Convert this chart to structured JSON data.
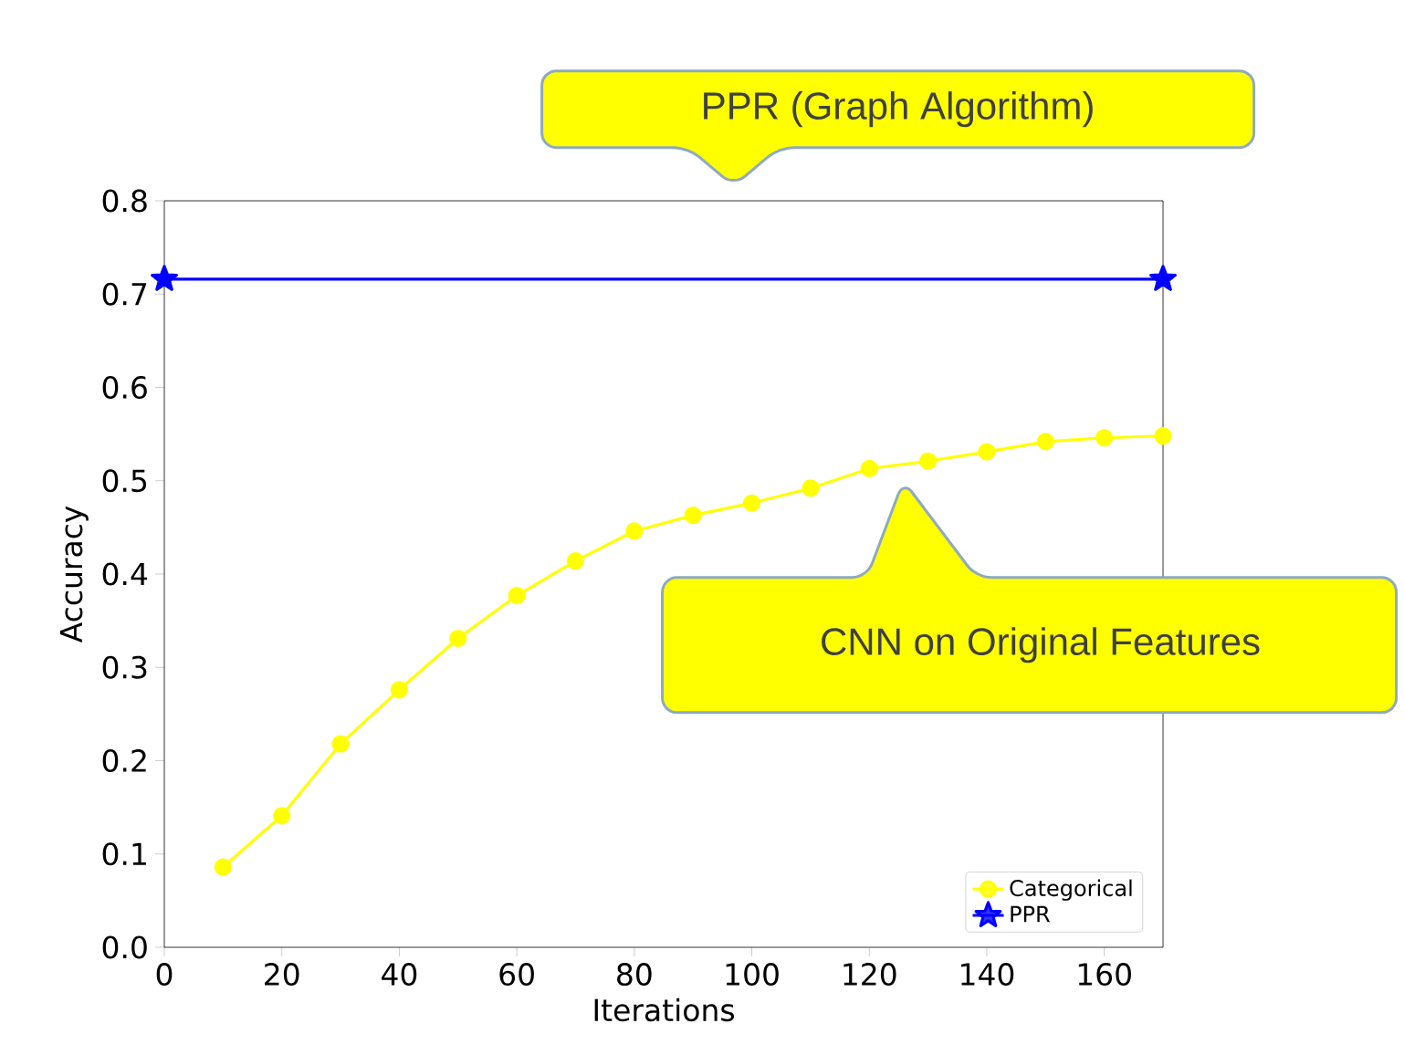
{
  "chart_data": {
    "type": "line",
    "xlabel": "Iterations",
    "ylabel": "Accuracy",
    "xlim": [
      0,
      170
    ],
    "ylim": [
      0,
      0.8
    ],
    "xticks": [
      0,
      20,
      40,
      60,
      80,
      100,
      120,
      140,
      160
    ],
    "yticks": [
      {
        "value": 0,
        "label": "0.0"
      },
      {
        "value": 0.1,
        "label": "0.1"
      },
      {
        "value": 0.2,
        "label": "0.2"
      },
      {
        "value": 0.3,
        "label": "0.3"
      },
      {
        "value": 0.4,
        "label": "0.4"
      },
      {
        "value": 0.5,
        "label": "0.5"
      },
      {
        "value": 0.6,
        "label": "0.6"
      },
      {
        "value": 0.7,
        "label": "0.7"
      },
      {
        "value": 0.8,
        "label": "0.8"
      }
    ],
    "legend": "bottom right",
    "grid": false,
    "series": [
      {
        "name": "Categorical",
        "color": "#ffff00",
        "marker": "circle",
        "x": [
          10,
          20,
          30,
          40,
          50,
          60,
          70,
          80,
          90,
          100,
          110,
          120,
          130,
          140,
          150,
          160,
          170
        ],
        "values": [
          0.086,
          0.141,
          0.218,
          0.276,
          0.331,
          0.377,
          0.414,
          0.446,
          0.463,
          0.476,
          0.492,
          0.513,
          0.521,
          0.531,
          0.542,
          0.546,
          0.548
        ]
      },
      {
        "name": "PPR",
        "color": "#0000ff",
        "marker": "star",
        "x": [
          0,
          170
        ],
        "values": [
          0.716,
          0.716
        ]
      }
    ],
    "annotations": [
      "PPR (Graph Algorithm)",
      "CNN on Original Features"
    ]
  }
}
